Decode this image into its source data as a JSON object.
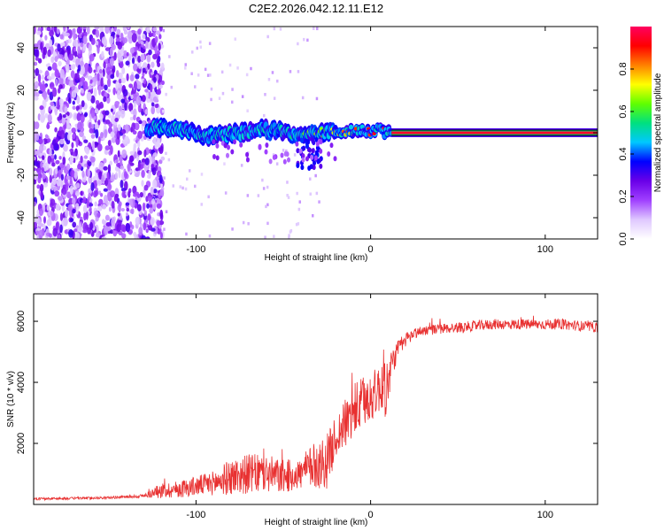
{
  "page": {
    "title": "C2E2.2026.042.12.11.E12"
  },
  "chart_data": [
    {
      "type": "heatmap",
      "title": "C2E2.2026.042.12.11.E12",
      "xlabel": "Height of straight line (km)",
      "ylabel": "Frequency (Hz)",
      "xlim": [
        -193,
        130
      ],
      "ylim": [
        -50,
        50
      ],
      "x_ticks": [
        -100,
        0,
        100
      ],
      "x_tick_labels": [
        "-100",
        "0",
        "100"
      ],
      "y_ticks": [
        -40,
        -20,
        0,
        20,
        40
      ],
      "y_tick_labels": [
        "-40",
        "-20",
        "0",
        "20",
        "40"
      ],
      "noise_region_x": [
        -193,
        -122
      ],
      "signal_start_x": -128,
      "stable_line": {
        "x_start": 12,
        "x_end": 130,
        "frequency": 0
      },
      "signal_track": [
        {
          "x": -125,
          "f": 2,
          "a": 0.45
        },
        {
          "x": -115,
          "f": 2,
          "a": 0.4
        },
        {
          "x": -105,
          "f": 1,
          "a": 0.45
        },
        {
          "x": -95,
          "f": -2,
          "a": 0.4
        },
        {
          "x": -85,
          "f": -1,
          "a": 0.45
        },
        {
          "x": -75,
          "f": 0,
          "a": 0.4
        },
        {
          "x": -65,
          "f": 2,
          "a": 0.45
        },
        {
          "x": -55,
          "f": 1,
          "a": 0.45
        },
        {
          "x": -45,
          "f": 0,
          "a": 0.5
        },
        {
          "x": -35,
          "f": -1,
          "a": 0.6
        },
        {
          "x": -25,
          "f": 0,
          "a": 0.7
        },
        {
          "x": -15,
          "f": 1,
          "a": 0.8
        },
        {
          "x": -5,
          "f": 1,
          "a": 0.85
        },
        {
          "x": 5,
          "f": 1,
          "a": 0.9
        },
        {
          "x": 12,
          "f": 0,
          "a": 0.95
        }
      ],
      "colorbar": {
        "label": "Normalized spectral amplitude",
        "range": [
          0.0,
          1.0
        ],
        "ticks": [
          0.0,
          0.2,
          0.4,
          0.6,
          0.8
        ],
        "tick_labels": [
          "0.0",
          "0.2",
          "0.4",
          "0.6",
          "0.8"
        ],
        "colors": [
          "#ffffff",
          "#dfc8ff",
          "#a040ff",
          "#6a00e8",
          "#0000ff",
          "#00c8ff",
          "#00e080",
          "#60ff00",
          "#ffff00",
          "#ff8000",
          "#ff0000",
          "#ff0060"
        ]
      }
    },
    {
      "type": "line",
      "xlabel": "Height of straight line (km)",
      "ylabel": "SNR (10 * v/v)",
      "xlim": [
        -193,
        130
      ],
      "ylim": [
        0,
        6900
      ],
      "x_ticks": [
        -100,
        0,
        100
      ],
      "x_tick_labels": [
        "-100",
        "0",
        "100"
      ],
      "y_ticks": [
        2000,
        4000,
        6000
      ],
      "y_tick_labels": [
        "2000",
        "4000",
        "6000"
      ],
      "series": [
        {
          "name": "SNR",
          "color": "#e83030",
          "baseline": {
            "x": [
              -193,
              -150,
              -130,
              -120,
              -110,
              -100,
              -90,
              -80,
              -70,
              -60,
              -50,
              -40,
              -35,
              -30,
              -25,
              -20,
              -15,
              -10,
              -5,
              0,
              5,
              8,
              10,
              12,
              15,
              20,
              25,
              30,
              40,
              50,
              60,
              70,
              80,
              90,
              100,
              110,
              120,
              130
            ],
            "y": [
              180,
              220,
              280,
              450,
              500,
              600,
              700,
              900,
              1000,
              1000,
              900,
              1000,
              1200,
              1300,
              1400,
              2200,
              2600,
              3000,
              3300,
              3500,
              3800,
              4000,
              3800,
              4600,
              5000,
              5400,
              5600,
              5700,
              5750,
              5800,
              5850,
              5900,
              5900,
              5900,
              5900,
              5900,
              5850,
              5800
            ],
            "jitter": [
              40,
              40,
              60,
              250,
              280,
              330,
              400,
              600,
              650,
              650,
              550,
              500,
              700,
              800,
              900,
              700,
              800,
              900,
              900,
              800,
              800,
              1200,
              900,
              500,
              350,
              250,
              180,
              170,
              170,
              170,
              170,
              170,
              170,
              170,
              170,
              170,
              170,
              170
            ]
          }
        }
      ]
    }
  ]
}
